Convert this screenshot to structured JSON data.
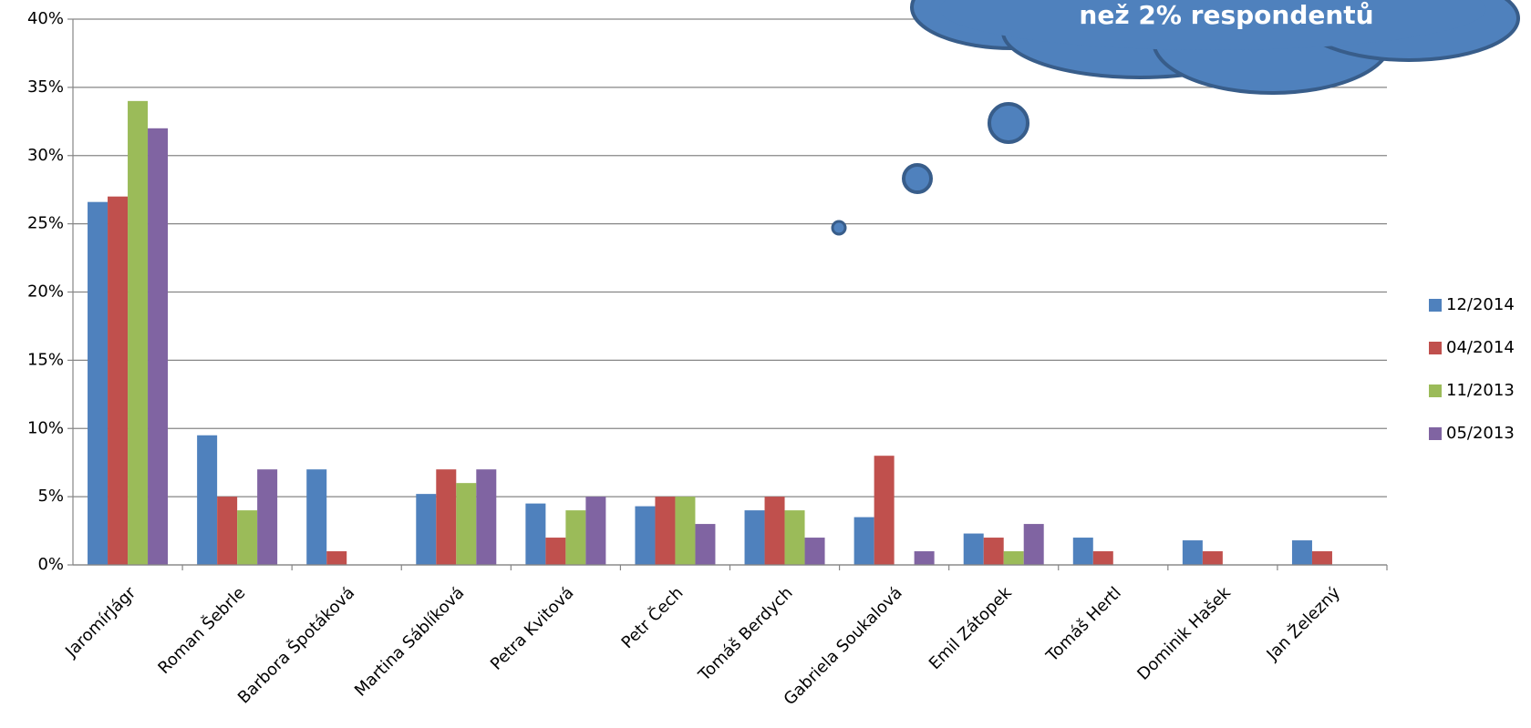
{
  "chart_data": {
    "type": "bar",
    "annotation": "než 2% respondentů",
    "categories": [
      "JaromírJágr",
      "Roman Šebrle",
      "Barbora Špotáková",
      "Martina Sáblíková",
      "Petra Kvitová",
      "Petr Čech",
      "Tomáš Berdych",
      "Gabriela Soukalová",
      "Emil Zátopek",
      "Tomáš Hertl",
      "Dominik Hašek",
      "Jan Železný"
    ],
    "series": [
      {
        "name": "12/2014",
        "color": "#4f81bd",
        "values": [
          26.6,
          9.5,
          7,
          5.2,
          4.5,
          4.3,
          4,
          3.5,
          2.3,
          2,
          1.8,
          1.8
        ]
      },
      {
        "name": "04/2014",
        "color": "#c0504d",
        "values": [
          27,
          5,
          1,
          7,
          2,
          5,
          5,
          8,
          2,
          1,
          1,
          1
        ]
      },
      {
        "name": "11/2013",
        "color": "#9bbb59",
        "values": [
          34,
          4,
          null,
          6,
          4,
          5,
          4,
          null,
          1,
          null,
          null,
          null
        ]
      },
      {
        "name": "05/2013",
        "color": "#8064a2",
        "values": [
          32,
          7,
          null,
          7,
          5,
          3,
          2,
          1,
          3,
          null,
          null,
          null
        ]
      }
    ],
    "ylim": [
      0,
      40
    ],
    "yticks": [
      {
        "value": 0,
        "label": "0%"
      },
      {
        "value": 5,
        "label": "5%"
      },
      {
        "value": 10,
        "label": "10%"
      },
      {
        "value": 15,
        "label": "15%"
      },
      {
        "value": 20,
        "label": "20%"
      },
      {
        "value": 25,
        "label": "25%"
      },
      {
        "value": 30,
        "label": "30%"
      },
      {
        "value": 35,
        "label": "35%"
      },
      {
        "value": 40,
        "label": "40%"
      }
    ],
    "grid": true,
    "legend": "right"
  }
}
